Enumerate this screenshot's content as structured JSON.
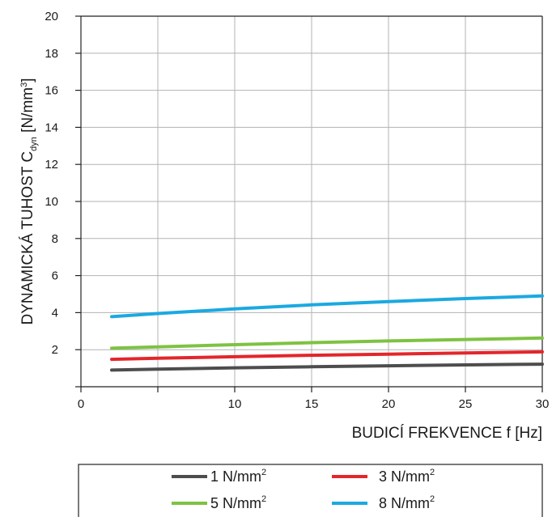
{
  "chart_data": {
    "type": "line",
    "xlabel": "BUDICÍ FREKVENCE f [Hz]",
    "ylabel": {
      "main": "DYNAMICKÁ TUHOST C",
      "subscript": "dyn",
      "unit_open": " [N/mm",
      "unit_sup": "3",
      "unit_close": "]"
    },
    "xlim": [
      0,
      30
    ],
    "ylim": [
      0,
      20
    ],
    "x_ticks": [
      0,
      5,
      10,
      15,
      20,
      25,
      30
    ],
    "x_tick_labels": [
      "0",
      "",
      "10",
      "15",
      "20",
      "25",
      "30"
    ],
    "y_ticks": [
      2,
      4,
      6,
      8,
      10,
      12,
      14,
      16,
      18,
      20
    ],
    "y_tick_labels": [
      "2",
      "4",
      "6",
      "8",
      "10",
      "12",
      "14",
      "16",
      "18",
      "20"
    ],
    "grid": true,
    "legend_position": "bottom",
    "series": [
      {
        "name": "1 N/mm",
        "sup": "2",
        "color": "#4d4d4d",
        "x": [
          2,
          5,
          10,
          15,
          20,
          25,
          30
        ],
        "y": [
          0.9,
          0.95,
          1.02,
          1.08,
          1.13,
          1.18,
          1.22
        ]
      },
      {
        "name": "3 N/mm",
        "sup": "2",
        "color": "#e3262b",
        "x": [
          2,
          5,
          10,
          15,
          20,
          25,
          30
        ],
        "y": [
          1.48,
          1.54,
          1.62,
          1.7,
          1.76,
          1.82,
          1.88
        ]
      },
      {
        "name": "5 N/mm",
        "sup": "2",
        "color": "#7ec242",
        "x": [
          2,
          5,
          10,
          15,
          20,
          25,
          30
        ],
        "y": [
          2.08,
          2.15,
          2.27,
          2.38,
          2.47,
          2.55,
          2.63
        ]
      },
      {
        "name": "8 N/mm",
        "sup": "2",
        "color": "#1ba9e1",
        "x": [
          2,
          5,
          10,
          15,
          20,
          25,
          30
        ],
        "y": [
          3.78,
          3.95,
          4.2,
          4.42,
          4.6,
          4.76,
          4.9
        ]
      }
    ]
  }
}
